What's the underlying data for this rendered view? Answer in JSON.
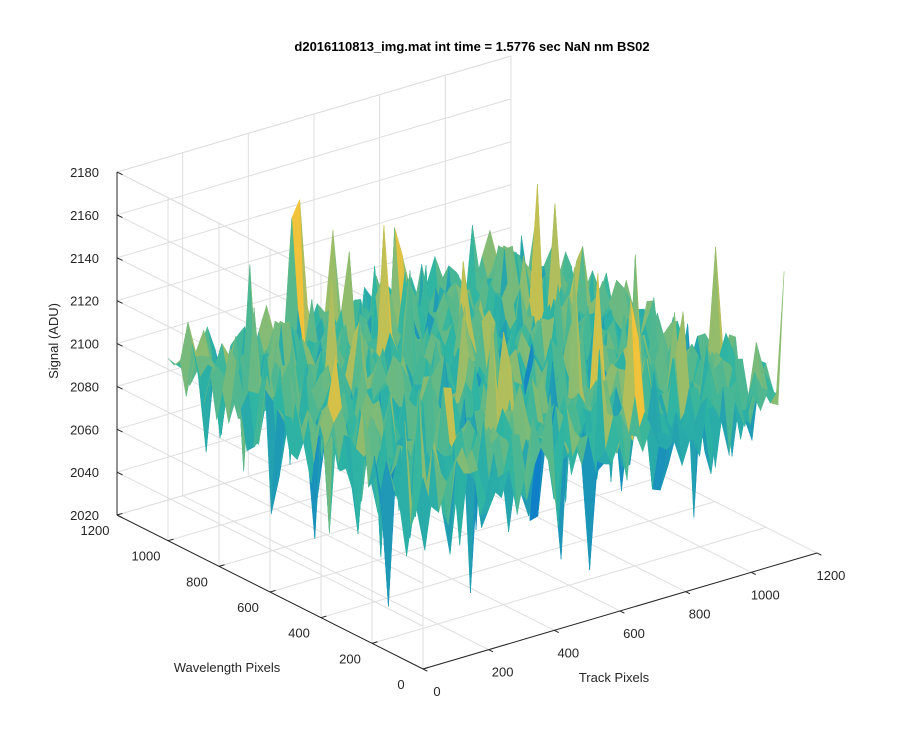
{
  "chart_data": {
    "type": "surface",
    "title": "d2016110813_img.mat int time = 1.5776 sec  NaN nm BS02",
    "xlabel": "Track Pixels",
    "ylabel": "Wavelength Pixels",
    "zlabel": "Signal (ADU)",
    "x_ticks": [
      0,
      200,
      400,
      600,
      800,
      1000,
      1200
    ],
    "y_ticks": [
      0,
      200,
      400,
      600,
      800,
      1000,
      1200
    ],
    "z_ticks": [
      2020,
      2040,
      2060,
      2080,
      2100,
      2120,
      2140,
      2160,
      2180
    ],
    "xlim": [
      0,
      1200
    ],
    "ylim": [
      0,
      1200
    ],
    "zlim": [
      2020,
      2180
    ],
    "grid": true,
    "colormap": "parula",
    "colors": {
      "low": "#0f7fc8",
      "mid": "#2fb5a2",
      "high": "#f0c33a"
    },
    "surface_summary": {
      "data_extent_x": [
        0,
        1100
      ],
      "data_extent_y": [
        0,
        1000
      ],
      "mean_signal": 2100,
      "signal_range": [
        2025,
        2165
      ],
      "noise_std": 11
    }
  }
}
